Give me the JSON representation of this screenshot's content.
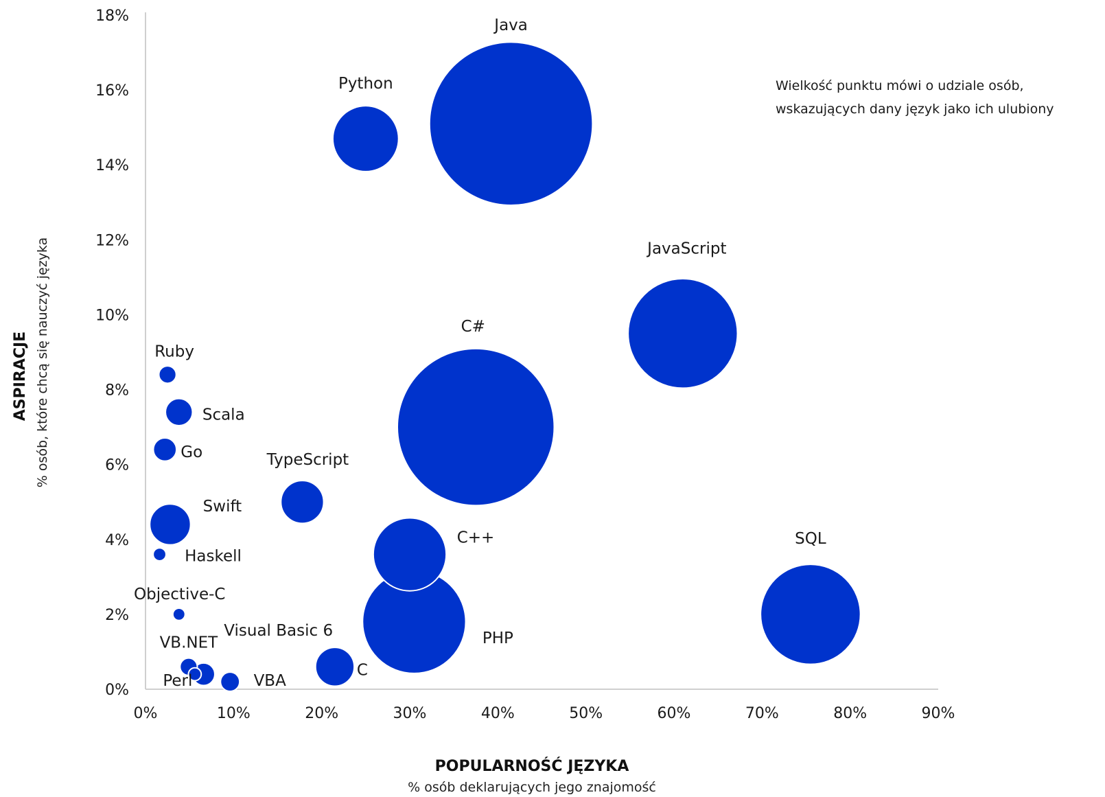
{
  "chart_data": {
    "type": "scatter",
    "bubble": true,
    "xlabel": "POPULARNOŚĆ JĘZYKA",
    "xlabel_sub": "% osób deklarujących jego znajomość",
    "ylabel": "ASPIRACJE",
    "ylabel_sub": "% osób, które chcą się nauczyć języka",
    "annotation": [
      "Wielkość  punktu mówi o udziale osób,",
      "wskazujących dany język jako ich ulubiony"
    ],
    "xlim": [
      0,
      90
    ],
    "ylim": [
      0,
      18
    ],
    "x_ticks": [
      "0%",
      "10%",
      "20%",
      "30%",
      "40%",
      "50%",
      "60%",
      "70%",
      "80%",
      "90%"
    ],
    "y_ticks": [
      "0%",
      "2%",
      "4%",
      "6%",
      "8%",
      "10%",
      "12%",
      "14%",
      "16%",
      "18%"
    ],
    "grid": false,
    "bubble_color": "#0033cc",
    "bubble_size_unit": "relative favourite share",
    "points": [
      {
        "label": "Java",
        "x": 41.5,
        "y": 15.1,
        "size": 8.0
      },
      {
        "label": "Python",
        "x": 25.0,
        "y": 14.7,
        "size": 1.3
      },
      {
        "label": "JavaScript",
        "x": 61.0,
        "y": 9.5,
        "size": 3.6
      },
      {
        "label": "C#",
        "x": 37.5,
        "y": 7.0,
        "size": 7.4
      },
      {
        "label": "SQL",
        "x": 75.5,
        "y": 2.0,
        "size": 3.0
      },
      {
        "label": "PHP",
        "x": 30.5,
        "y": 1.8,
        "size": 3.2
      },
      {
        "label": "C++",
        "x": 30.0,
        "y": 3.6,
        "size": 1.6
      },
      {
        "label": "TypeScript",
        "x": 17.8,
        "y": 5.0,
        "size": 0.55
      },
      {
        "label": "C",
        "x": 21.5,
        "y": 0.6,
        "size": 0.45
      },
      {
        "label": "Ruby",
        "x": 2.5,
        "y": 8.4,
        "size": 0.09
      },
      {
        "label": "Scala",
        "x": 3.8,
        "y": 7.4,
        "size": 0.22
      },
      {
        "label": "Go",
        "x": 2.2,
        "y": 6.4,
        "size": 0.16
      },
      {
        "label": "Swift",
        "x": 2.8,
        "y": 4.4,
        "size": 0.5
      },
      {
        "label": "Haskell",
        "x": 1.6,
        "y": 3.6,
        "size": 0.05
      },
      {
        "label": "Objective-C",
        "x": 3.8,
        "y": 2.0,
        "size": 0.045
      },
      {
        "label": "Visual Basic 6",
        "x": 6.6,
        "y": 0.4,
        "size": 0.15
      },
      {
        "label": "VB.NET",
        "x": 4.9,
        "y": 0.6,
        "size": 0.09
      },
      {
        "label": "Perl",
        "x": 5.6,
        "y": 0.4,
        "size": 0.05
      },
      {
        "label": "VBA",
        "x": 9.6,
        "y": 0.2,
        "size": 0.11
      }
    ]
  }
}
